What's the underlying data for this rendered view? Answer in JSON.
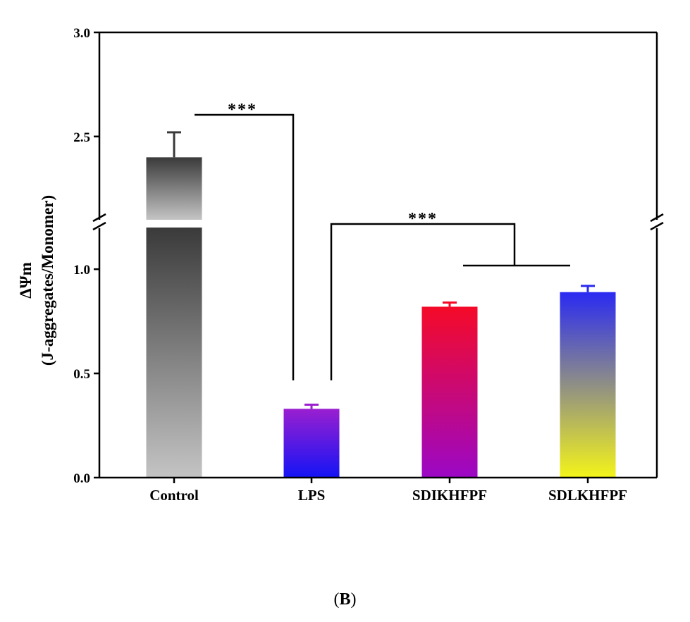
{
  "chart_data": {
    "type": "bar",
    "title": "",
    "xlabel": "",
    "ylabel_line1": "ΔΨm",
    "ylabel_line2": "(J-aggregates/Monomer)",
    "categories": [
      "Control",
      "LPS",
      "SDIKHFPF",
      "SDLKHFPF"
    ],
    "values": [
      2.4,
      0.33,
      0.82,
      0.89
    ],
    "errors": [
      0.12,
      0.02,
      0.02,
      0.03
    ],
    "y_axis_break": [
      1.2,
      2.1
    ],
    "ylim_lower": [
      0.0,
      1.2
    ],
    "ylim_upper": [
      2.1,
      3.0
    ],
    "y_ticks": [
      "0.0",
      "0.5",
      "1.0",
      "2.5",
      "3.0"
    ],
    "y_tick_values": [
      0.0,
      0.5,
      1.0,
      2.5,
      3.0
    ],
    "significance": [
      {
        "label": "***",
        "from": "Control",
        "to": "LPS"
      },
      {
        "label": "***",
        "from": "LPS",
        "to": "SDIKHFPF, SDLKHFPF"
      }
    ],
    "bar_gradients": [
      {
        "top": "#3a3a3a",
        "bottom": "#c4c4c4"
      },
      {
        "top": "#9a1fd0",
        "bottom": "#1414f5"
      },
      {
        "top": "#f50a28",
        "bottom": "#9b08c6"
      },
      {
        "top": "#2a2af2",
        "bottom": "#f4f41a"
      }
    ]
  },
  "caption": {
    "open": "(",
    "label": "B",
    "close": ")"
  }
}
